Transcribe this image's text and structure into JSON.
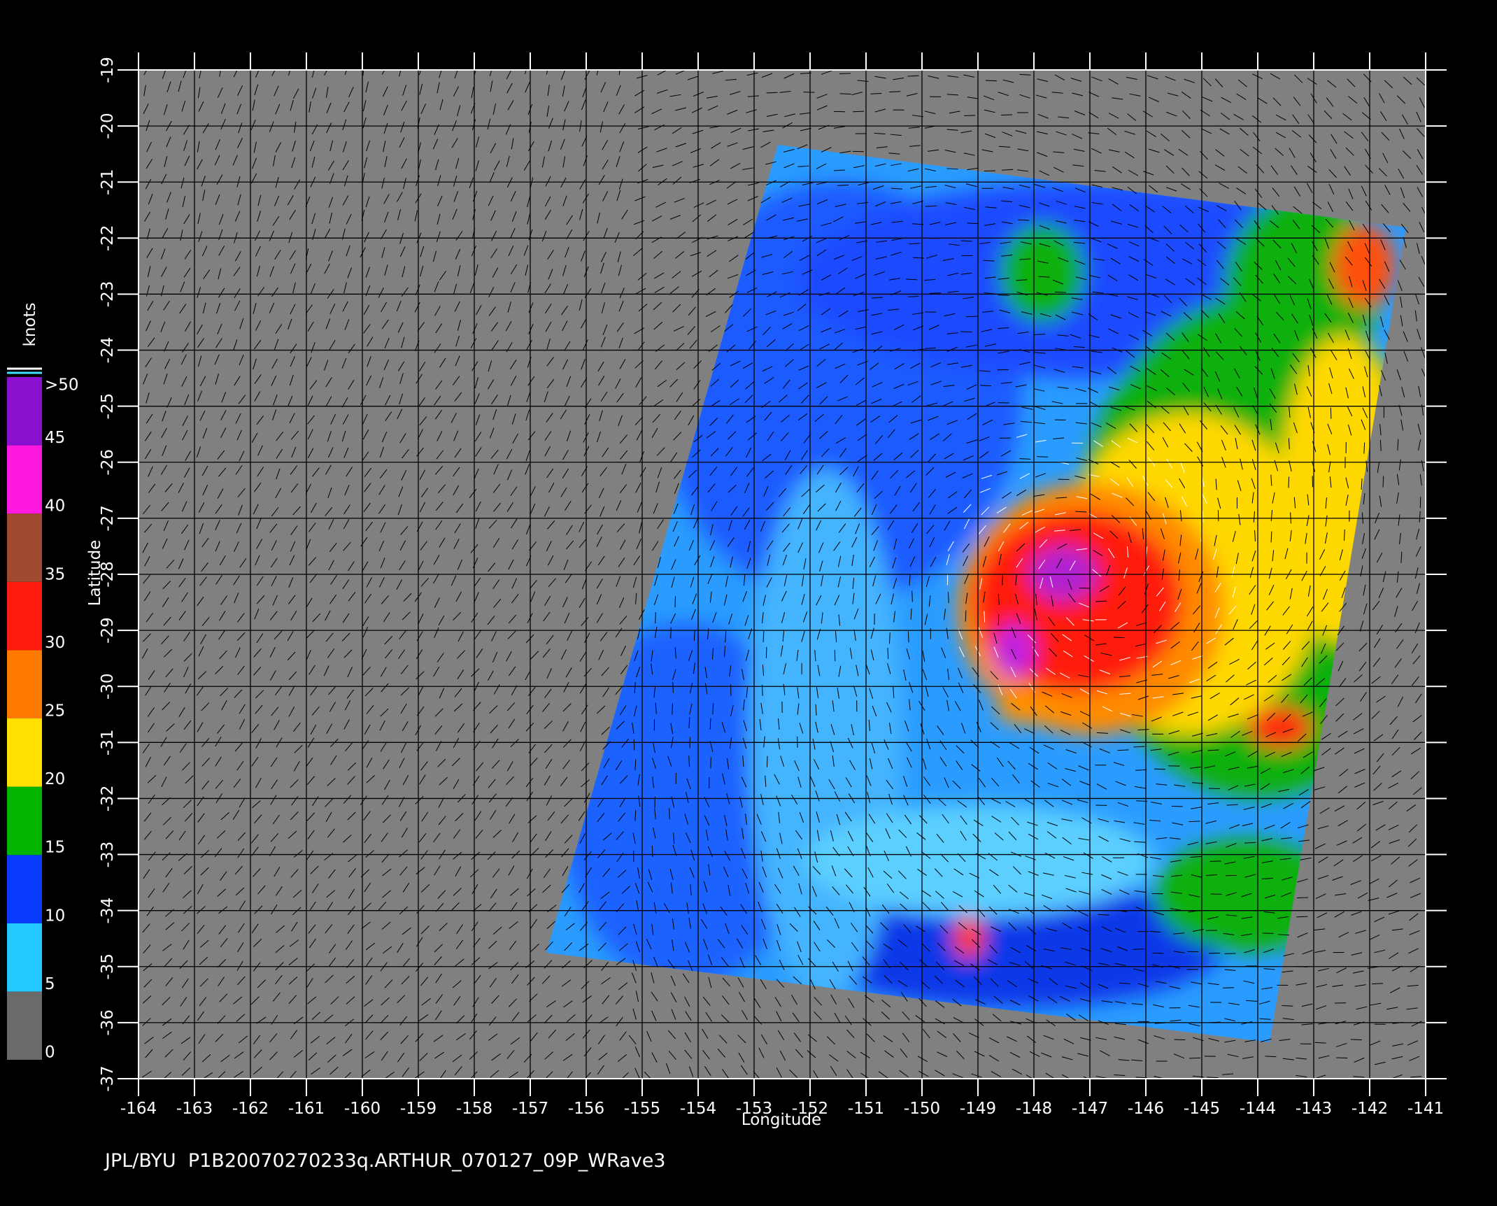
{
  "chart_data": {
    "type": "map",
    "xlabel": "Longitude",
    "ylabel": "Latitude",
    "footer": "JPL/BYU  P1B20070270233q.ARTHUR_070127_09P_WRave3",
    "xlim": [
      -164,
      -141
    ],
    "ylim": [
      -37,
      -19
    ],
    "xticks": [
      -164,
      -163,
      -162,
      -161,
      -160,
      -159,
      -158,
      -157,
      -156,
      -155,
      -154,
      -153,
      -152,
      -151,
      -150,
      -149,
      -148,
      -147,
      -146,
      -145,
      -144,
      -143,
      -142,
      -141
    ],
    "yticks": [
      -37,
      -36,
      -35,
      -34,
      -33,
      -32,
      -31,
      -30,
      -29,
      -28,
      -27,
      -26,
      -25,
      -24,
      -23,
      -22,
      -21,
      -20,
      -19
    ],
    "grid": true,
    "colorbar": {
      "label": "knots",
      "ticks": [
        0,
        5,
        10,
        15,
        20,
        25,
        30,
        35,
        40,
        45,
        {
          "value": 50,
          "label": ">50"
        }
      ],
      "colors": [
        "#6a6a6a",
        "#22c8ff",
        "#0a3cff",
        "#00b400",
        "#ffe000",
        "#ff7a00",
        "#ff1a10",
        "#a04a30",
        "#ff18e0",
        "#8a10d0"
      ]
    }
  }
}
